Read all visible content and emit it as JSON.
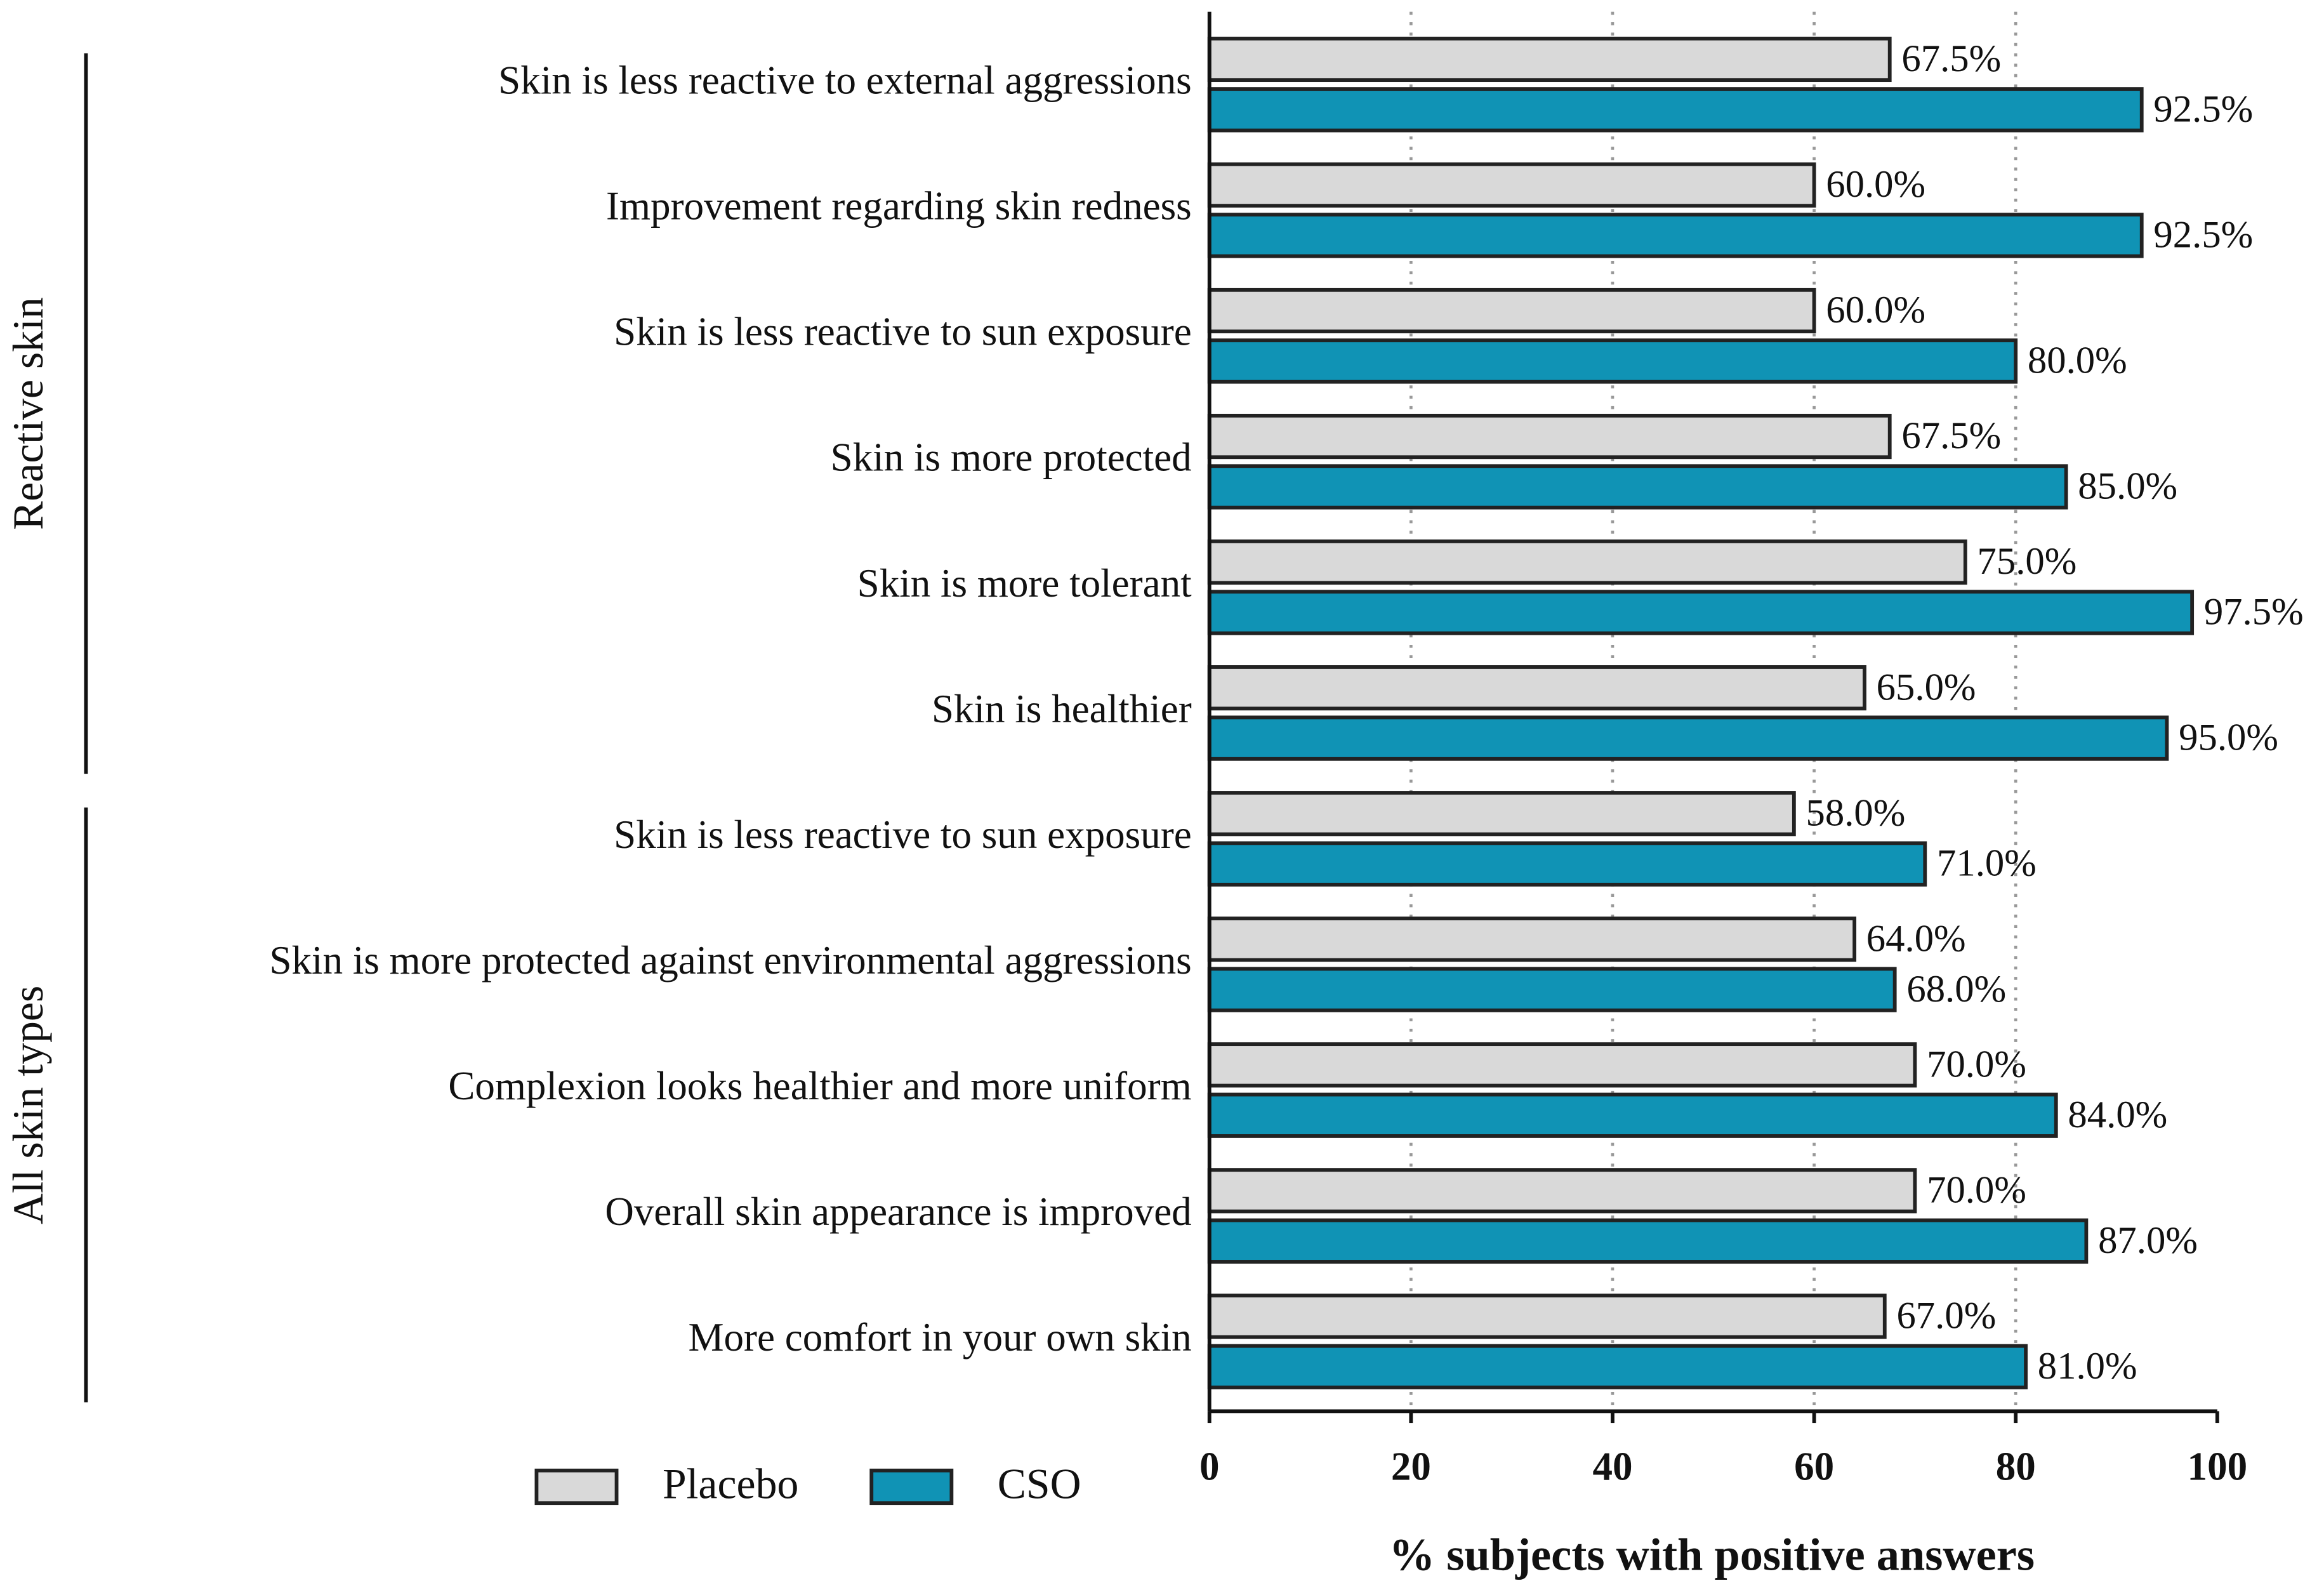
{
  "chart_data": {
    "type": "bar",
    "orientation": "horizontal",
    "categories": [
      "Skin is less reactive to external aggressions",
      "Improvement regarding skin redness",
      "Skin is less reactive to sun exposure",
      "Skin is more protected",
      "Skin is more tolerant",
      "Skin is healthier",
      "Skin is less reactive to sun exposure",
      "Skin is more protected against environmental aggressions",
      "Complexion looks healthier and more uniform",
      "Overall skin appearance is improved",
      "More comfort in your own skin"
    ],
    "groups": [
      "Reactive skin",
      "Reactive skin",
      "Reactive skin",
      "Reactive skin",
      "Reactive skin",
      "Reactive skin",
      "All skin types",
      "All skin types",
      "All skin types",
      "All skin types",
      "All skin types"
    ],
    "series": [
      {
        "name": "Placebo",
        "color": "#d9d9d9",
        "values": [
          67.5,
          60.0,
          60.0,
          67.5,
          75.0,
          65.0,
          58.0,
          64.0,
          70.0,
          70.0,
          67.0
        ],
        "value_labels": [
          "67.5%",
          "60.0%",
          "60.0%",
          "67.5%",
          "75.0%",
          "65.0%",
          "58.0%",
          "64.0%",
          "70.0%",
          "70.0%",
          "67.0%"
        ]
      },
      {
        "name": "CSO",
        "color": "#1093b5",
        "values": [
          92.5,
          92.5,
          80.0,
          85.0,
          97.5,
          95.0,
          71.0,
          68.0,
          84.0,
          87.0,
          81.0
        ],
        "value_labels": [
          "92.5%",
          "92.5%",
          "80.0%",
          "85.0%",
          "97.5%",
          "95.0%",
          "71.0%",
          "68.0%",
          "84.0%",
          "87.0%",
          "81.0%"
        ]
      }
    ],
    "xlim": [
      0,
      100
    ],
    "xticks": [
      0,
      20,
      40,
      60,
      80,
      100
    ],
    "xlabel": "% subjects with positive answers",
    "grid": true
  }
}
